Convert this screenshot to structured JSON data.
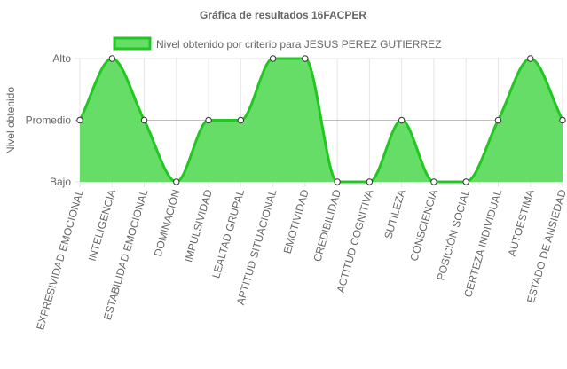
{
  "chart_data": {
    "type": "line",
    "title": "Gráfica de resultados 16FACPER",
    "ylabel": "Nivel obtenido",
    "xlabel": "",
    "y_levels": [
      "Bajo",
      "Promedio",
      "Alto"
    ],
    "ylim": [
      1,
      3
    ],
    "grid": true,
    "legend_position": "top",
    "categories": [
      "EXPRESIVIDAD EMOCIONAL",
      "INTELIGENCIA",
      "ESTABILIDAD EMOCIONAL",
      "DOMINACIÓN",
      "IMPULSIVIDAD",
      "LEALTAD GRUPAL",
      "APTITUD SITUACIONAL",
      "EMOTIVIDAD",
      "CREDIBILIDAD",
      "ACTITUD COGNITIVA",
      "SUTILEZA",
      "CONSCIENCIA",
      "POSICIÓN SOCIAL",
      "CERTEZA INDIVIDUAL",
      "AUTOESTIMA",
      "ESTADO DE ANSIEDAD"
    ],
    "series": [
      {
        "name": "Nivel obtenido por criterio para JESUS PEREZ GUTIERREZ",
        "values": [
          2,
          3,
          2,
          1,
          2,
          2,
          3,
          3,
          1,
          1,
          2,
          1,
          1,
          2,
          3,
          2
        ],
        "fill_color": "#66dd66",
        "line_color": "#22c722",
        "point_color": "#ffffff"
      }
    ]
  }
}
